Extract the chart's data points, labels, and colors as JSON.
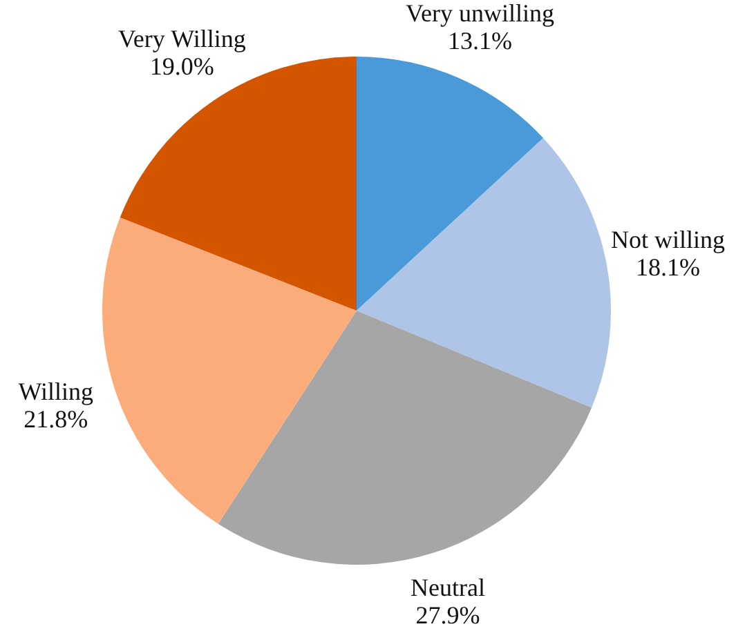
{
  "chart_data": {
    "type": "pie",
    "categories": [
      "Very unwilling",
      "Not willing",
      "Neutral",
      "Willing",
      "Very Willing"
    ],
    "values": [
      13.1,
      18.1,
      27.9,
      21.8,
      19.0
    ],
    "colors": [
      "#4a99d9",
      "#aec5e8",
      "#a6a6a6",
      "#fbac7b",
      "#d45500"
    ],
    "value_labels": [
      "13.1%",
      "18.1%",
      "27.9%",
      "21.8%",
      "19.0%"
    ],
    "legend": false
  }
}
